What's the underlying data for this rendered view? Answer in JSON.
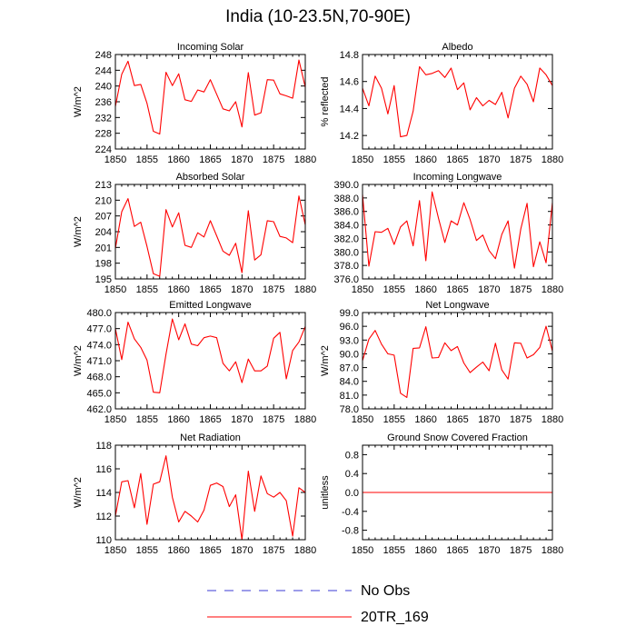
{
  "title": "India (10-23.5N,70-90E)",
  "legend": [
    {
      "label": "No Obs",
      "color": "#3b3bd6",
      "style": "dashed"
    },
    {
      "label": "20TR_169",
      "color": "#ff0000",
      "style": "solid"
    }
  ],
  "chart_data": [
    {
      "type": "line",
      "title": "Incoming Solar",
      "ylabel": "W/m^2",
      "xlim": [
        1850,
        1880
      ],
      "ylim": [
        224,
        248
      ],
      "yticks": [
        224,
        228,
        232,
        236,
        240,
        244,
        248
      ],
      "ytick_labels": [
        "224",
        "228",
        "232",
        "236",
        "240",
        "244",
        "248"
      ],
      "xticks": [
        1850,
        1855,
        1860,
        1865,
        1870,
        1875,
        1880
      ],
      "xtick_labels": [
        "1850",
        "1855",
        "1860",
        "1865",
        "1870",
        "1875",
        "1880"
      ],
      "series": [
        {
          "name": "20TR_169",
          "x": [
            1850,
            1851,
            1852,
            1853,
            1854,
            1855,
            1856,
            1857,
            1858,
            1859,
            1860,
            1861,
            1862,
            1863,
            1864,
            1865,
            1866,
            1867,
            1868,
            1869,
            1870,
            1871,
            1872,
            1873,
            1874,
            1875,
            1876,
            1877,
            1878,
            1879,
            1880
          ],
          "values": [
            234.8,
            243.0,
            246.3,
            240.1,
            240.4,
            235.6,
            228.5,
            227.8,
            243.5,
            240.1,
            243.1,
            236.5,
            236.1,
            239.0,
            238.5,
            241.6,
            237.9,
            234.2,
            233.7,
            236.0,
            229.6,
            243.4,
            232.6,
            233.2,
            241.6,
            241.5,
            238.0,
            237.5,
            236.9,
            246.6,
            239.7
          ]
        }
      ]
    },
    {
      "type": "line",
      "title": "Albedo",
      "ylabel": "% reflected",
      "xlim": [
        1850,
        1880
      ],
      "ylim": [
        14.1,
        14.8
      ],
      "yticks": [
        14.2,
        14.4,
        14.6,
        14.8
      ],
      "ytick_labels": [
        "14.2",
        "14.4",
        "14.6",
        "14.8"
      ],
      "xticks": [
        1850,
        1855,
        1860,
        1865,
        1870,
        1875,
        1880
      ],
      "xtick_labels": [
        "1850",
        "1855",
        "1860",
        "1865",
        "1870",
        "1875",
        "1880"
      ],
      "series": [
        {
          "name": "20TR_169",
          "x": [
            1850,
            1851,
            1852,
            1853,
            1854,
            1855,
            1856,
            1857,
            1858,
            1859,
            1860,
            1861,
            1862,
            1863,
            1864,
            1865,
            1866,
            1867,
            1868,
            1869,
            1870,
            1871,
            1872,
            1873,
            1874,
            1875,
            1876,
            1877,
            1878,
            1879,
            1880
          ],
          "values": [
            14.55,
            14.42,
            14.64,
            14.55,
            14.36,
            14.57,
            14.19,
            14.2,
            14.38,
            14.71,
            14.65,
            14.66,
            14.68,
            14.63,
            14.7,
            14.54,
            14.59,
            14.39,
            14.48,
            14.42,
            14.46,
            14.43,
            14.52,
            14.33,
            14.55,
            14.64,
            14.58,
            14.45,
            14.7,
            14.65,
            14.57
          ]
        }
      ]
    },
    {
      "type": "line",
      "title": "Absorbed Solar",
      "ylabel": "W/m^2",
      "xlim": [
        1850,
        1880
      ],
      "ylim": [
        195,
        213
      ],
      "yticks": [
        195,
        198,
        201,
        204,
        207,
        210,
        213
      ],
      "ytick_labels": [
        "195",
        "198",
        "201",
        "204",
        "207",
        "210",
        "213"
      ],
      "xticks": [
        1850,
        1855,
        1860,
        1865,
        1870,
        1875,
        1880
      ],
      "xtick_labels": [
        "1850",
        "1855",
        "1860",
        "1865",
        "1870",
        "1875",
        "1880"
      ],
      "series": [
        {
          "name": "20TR_169",
          "x": [
            1850,
            1851,
            1852,
            1853,
            1854,
            1855,
            1856,
            1857,
            1858,
            1859,
            1860,
            1861,
            1862,
            1863,
            1864,
            1865,
            1866,
            1867,
            1868,
            1869,
            1870,
            1871,
            1872,
            1873,
            1874,
            1875,
            1876,
            1877,
            1878,
            1879,
            1880
          ],
          "values": [
            200.8,
            207.8,
            210.3,
            205.0,
            205.8,
            201.2,
            196.0,
            195.5,
            208.2,
            204.9,
            207.6,
            201.4,
            201.0,
            203.8,
            203.0,
            206.1,
            203.2,
            200.3,
            199.5,
            201.8,
            196.2,
            208.0,
            198.6,
            199.6,
            206.1,
            205.9,
            203.1,
            202.8,
            201.9,
            210.8,
            205.3
          ]
        }
      ]
    },
    {
      "type": "line",
      "title": "Incoming Longwave",
      "ylabel": "",
      "xlim": [
        1850,
        1880
      ],
      "ylim": [
        376,
        390
      ],
      "yticks": [
        376,
        378,
        380,
        382,
        384,
        386,
        388,
        390
      ],
      "ytick_labels": [
        "376.0",
        "378.0",
        "380.0",
        "382.0",
        "384.0",
        "386.0",
        "388.0",
        "390.0"
      ],
      "xticks": [
        1850,
        1855,
        1860,
        1865,
        1870,
        1875,
        1880
      ],
      "xtick_labels": [
        "1850",
        "1855",
        "1860",
        "1865",
        "1870",
        "1875",
        "1880"
      ],
      "series": [
        {
          "name": "20TR_169",
          "x": [
            1850,
            1851,
            1852,
            1853,
            1854,
            1855,
            1856,
            1857,
            1858,
            1859,
            1860,
            1861,
            1862,
            1863,
            1864,
            1865,
            1866,
            1867,
            1868,
            1869,
            1870,
            1871,
            1872,
            1873,
            1874,
            1875,
            1876,
            1877,
            1878,
            1879,
            1880
          ],
          "values": [
            388.5,
            377.9,
            383.0,
            382.9,
            383.5,
            381.1,
            383.7,
            384.6,
            380.9,
            387.6,
            378.7,
            388.9,
            385.0,
            381.4,
            384.6,
            384.0,
            387.3,
            384.8,
            381.7,
            382.5,
            380.2,
            379.0,
            382.6,
            384.6,
            377.6,
            383.4,
            387.2,
            377.8,
            381.5,
            378.4,
            387.3
          ]
        }
      ]
    },
    {
      "type": "line",
      "title": "Emitted Longwave",
      "ylabel": "W/m^2",
      "xlim": [
        1850,
        1880
      ],
      "ylim": [
        462,
        480
      ],
      "yticks": [
        462,
        465,
        468,
        471,
        474,
        477,
        480
      ],
      "ytick_labels": [
        "462.0",
        "465.0",
        "468.0",
        "471.0",
        "474.0",
        "477.0",
        "480.0"
      ],
      "xticks": [
        1850,
        1855,
        1860,
        1865,
        1870,
        1875,
        1880
      ],
      "xtick_labels": [
        "1850",
        "1855",
        "1860",
        "1865",
        "1870",
        "1875",
        "1880"
      ],
      "series": [
        {
          "name": "20TR_169",
          "x": [
            1850,
            1851,
            1852,
            1853,
            1854,
            1855,
            1856,
            1857,
            1858,
            1859,
            1860,
            1861,
            1862,
            1863,
            1864,
            1865,
            1866,
            1867,
            1868,
            1869,
            1870,
            1871,
            1872,
            1873,
            1874,
            1875,
            1876,
            1877,
            1878,
            1879,
            1880
          ],
          "values": [
            477.0,
            471.2,
            478.2,
            475.1,
            473.5,
            471.1,
            465.1,
            465.0,
            472.2,
            478.8,
            474.9,
            477.9,
            474.1,
            473.8,
            475.3,
            475.6,
            475.3,
            470.5,
            469.1,
            470.8,
            466.9,
            471.3,
            469.1,
            469.1,
            470.0,
            475.2,
            476.3,
            467.6,
            472.9,
            474.5,
            477.4
          ]
        }
      ]
    },
    {
      "type": "line",
      "title": "Net Longwave",
      "ylabel": "W/m^2",
      "xlim": [
        1850,
        1880
      ],
      "ylim": [
        78,
        99
      ],
      "yticks": [
        78,
        81,
        84,
        87,
        90,
        93,
        96,
        99
      ],
      "ytick_labels": [
        "78.0",
        "81.0",
        "84.0",
        "87.0",
        "90.0",
        "93.0",
        "96.0",
        "99.0"
      ],
      "xticks": [
        1850,
        1855,
        1860,
        1865,
        1870,
        1875,
        1880
      ],
      "xtick_labels": [
        "1850",
        "1855",
        "1860",
        "1865",
        "1870",
        "1875",
        "1880"
      ],
      "series": [
        {
          "name": "20TR_169",
          "x": [
            1850,
            1851,
            1852,
            1853,
            1854,
            1855,
            1856,
            1857,
            1858,
            1859,
            1860,
            1861,
            1862,
            1863,
            1864,
            1865,
            1866,
            1867,
            1868,
            1869,
            1870,
            1871,
            1872,
            1873,
            1874,
            1875,
            1876,
            1877,
            1878,
            1879,
            1880
          ],
          "values": [
            88.5,
            93.2,
            95.1,
            92.1,
            90.0,
            89.7,
            81.4,
            80.5,
            91.2,
            91.3,
            95.9,
            89.1,
            89.2,
            92.4,
            90.7,
            91.6,
            88.0,
            85.9,
            87.1,
            88.2,
            86.3,
            92.3,
            86.5,
            84.5,
            92.4,
            92.3,
            89.1,
            89.8,
            91.4,
            96.0,
            90.6
          ]
        }
      ]
    },
    {
      "type": "line",
      "title": "Net Radiation",
      "ylabel": "W/m^2",
      "xlim": [
        1850,
        1880
      ],
      "ylim": [
        110,
        118
      ],
      "yticks": [
        110,
        112,
        114,
        116,
        118
      ],
      "ytick_labels": [
        "110",
        "112",
        "114",
        "116",
        "118"
      ],
      "xticks": [
        1850,
        1855,
        1860,
        1865,
        1870,
        1875,
        1880
      ],
      "xtick_labels": [
        "1850",
        "1855",
        "1860",
        "1865",
        "1870",
        "1875",
        "1880"
      ],
      "series": [
        {
          "name": "20TR_169",
          "x": [
            1850,
            1851,
            1852,
            1853,
            1854,
            1855,
            1856,
            1857,
            1858,
            1859,
            1860,
            1861,
            1862,
            1863,
            1864,
            1865,
            1866,
            1867,
            1868,
            1869,
            1870,
            1871,
            1872,
            1873,
            1874,
            1875,
            1876,
            1877,
            1878,
            1879,
            1880
          ],
          "values": [
            112.0,
            114.9,
            115.0,
            112.7,
            115.6,
            111.3,
            114.7,
            114.9,
            117.1,
            113.6,
            111.5,
            112.4,
            112.0,
            111.5,
            112.5,
            114.6,
            114.8,
            114.5,
            112.8,
            113.8,
            110.0,
            115.8,
            112.4,
            115.4,
            113.9,
            113.6,
            114.0,
            113.3,
            110.3,
            114.4,
            114.0
          ]
        }
      ]
    },
    {
      "type": "line",
      "title": "Ground Snow Covered Fraction",
      "ylabel": "unitless",
      "xlim": [
        1850,
        1880
      ],
      "ylim": [
        -1,
        1
      ],
      "yticks": [
        -0.8,
        -0.4,
        0,
        0.4,
        0.8
      ],
      "ytick_labels": [
        "-0.8",
        "-0.4",
        "0.0",
        "0.4",
        "0.8"
      ],
      "xticks": [
        1850,
        1855,
        1860,
        1865,
        1870,
        1875,
        1880
      ],
      "xtick_labels": [
        "1850",
        "1855",
        "1860",
        "1865",
        "1870",
        "1875",
        "1880"
      ],
      "series": [
        {
          "name": "20TR_169",
          "x": [
            1850,
            1880
          ],
          "values": [
            0,
            0
          ]
        }
      ]
    }
  ]
}
